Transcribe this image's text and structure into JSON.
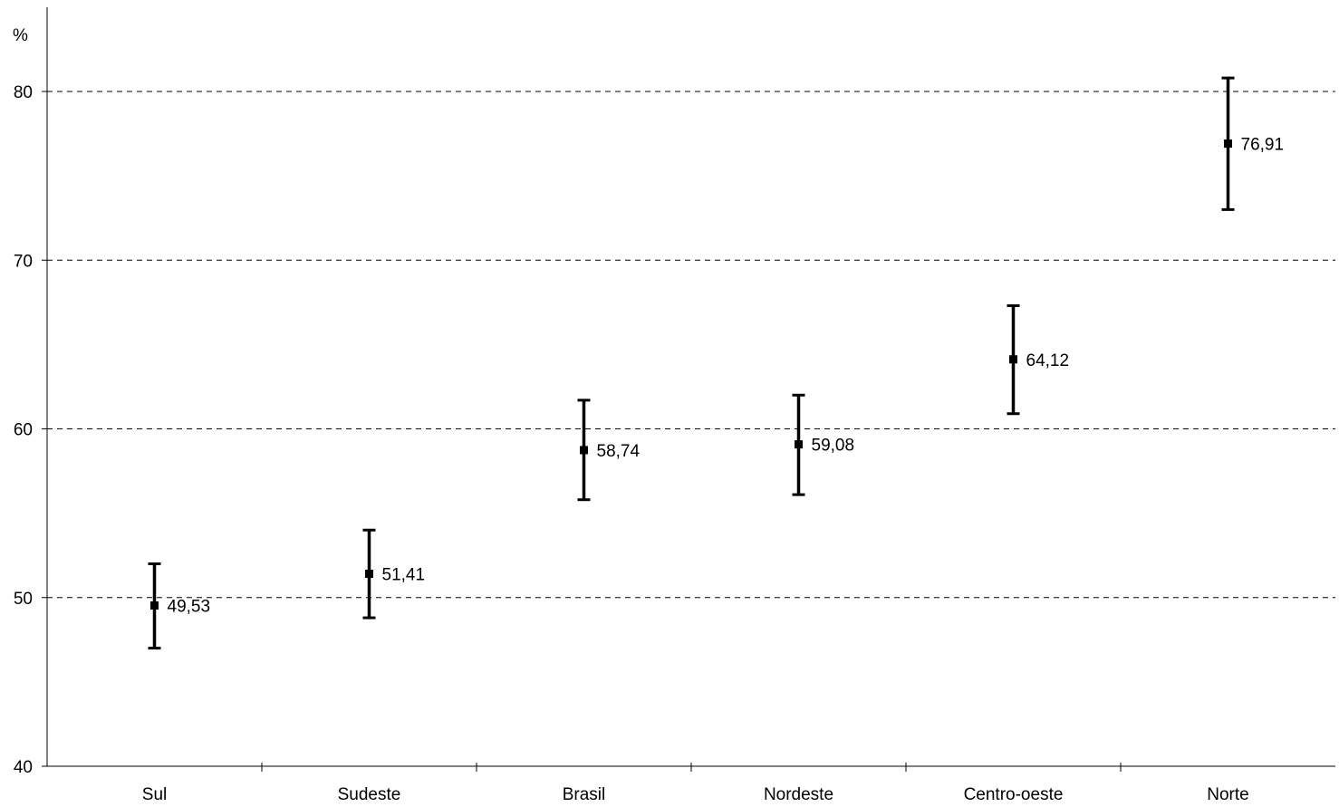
{
  "chart_data": {
    "type": "scatter",
    "subtype": "error-bar",
    "title": "",
    "xlabel": "",
    "ylabel": "%",
    "ylim": [
      40,
      85
    ],
    "yticks": [
      "40",
      "50",
      "60",
      "70",
      "80"
    ],
    "grid": "horizontal dashed",
    "legend": "none",
    "categories": [
      "Sul",
      "Sudeste",
      "Brasil",
      "Nordeste",
      "Centro-oeste",
      "Norte"
    ],
    "values": [
      49.53,
      51.41,
      58.74,
      59.08,
      64.12,
      76.91
    ],
    "labels": [
      "49,53",
      "51,41",
      "58,74",
      "59,08",
      "64,12",
      "76,91"
    ],
    "lower": [
      47.0,
      48.8,
      55.8,
      56.1,
      60.9,
      73.0
    ],
    "upper": [
      52.0,
      54.0,
      61.7,
      62.0,
      67.3,
      80.8
    ],
    "colors": {
      "marks": "#000000",
      "grid": "#000000",
      "background": "#ffffff"
    }
  }
}
